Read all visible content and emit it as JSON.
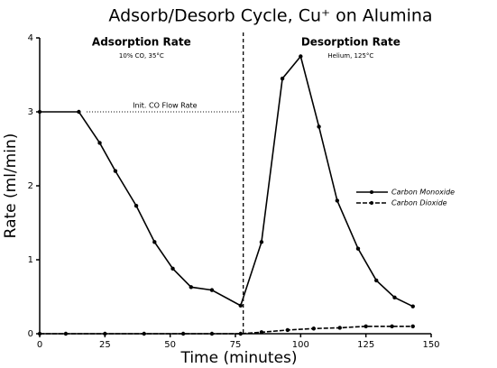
{
  "chart_data": {
    "type": "line",
    "title": "Adsorb/Desorb Cycle, Cu⁺ on Alumina",
    "x_label": "Time (minutes)",
    "y_label": "Rate (ml/min)",
    "xlim": [
      0,
      150
    ],
    "ylim": [
      0,
      4
    ],
    "xticks": [
      0,
      25,
      50,
      75,
      100,
      125,
      150
    ],
    "yticks": [
      0,
      1,
      2,
      3,
      4
    ],
    "annotations": [
      {
        "text": "Adsorption Rate",
        "sub": "10% CO, 35°C"
      },
      {
        "text": "Desorption Rate",
        "sub": "Helium, 125°C"
      }
    ],
    "reference_line": {
      "label": "Init. CO Flow Rate",
      "y": 3
    },
    "divider_x": 78,
    "series": [
      {
        "name": "Carbon Monoxide",
        "color": "#000000",
        "x": [
          0,
          15,
          23,
          29,
          37,
          44,
          51,
          58,
          66,
          77,
          85,
          93,
          100,
          107,
          114,
          122,
          129,
          136,
          143
        ],
        "values": [
          3,
          3,
          2.58,
          2.2,
          1.73,
          1.24,
          0.88,
          0.63,
          0.59,
          0.38,
          1.24,
          3.45,
          3.75,
          2.8,
          1.8,
          1.15,
          0.72,
          0.49,
          0.37
        ]
      },
      {
        "name": "Carbon Dioxide",
        "color": "#000000",
        "x": [
          0,
          10,
          25,
          40,
          55,
          66,
          77,
          85,
          95,
          105,
          115,
          125,
          135,
          143
        ],
        "values": [
          0,
          0,
          0,
          0,
          0,
          0,
          0,
          0.02,
          0.05,
          0.07,
          0.08,
          0.1,
          0.1,
          0.1
        ]
      }
    ]
  }
}
